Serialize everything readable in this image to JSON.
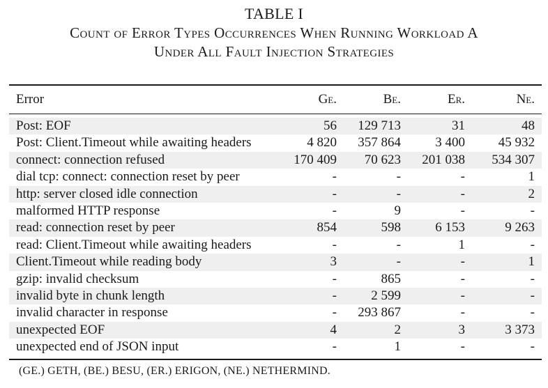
{
  "table_label": "TABLE I",
  "title_lines": [
    "Count of Error Types Occurrences When Running Workload A",
    "Under All Fault Injection Strategies"
  ],
  "headers": [
    "Error",
    "Ge.",
    "Be.",
    "Er.",
    "Ne."
  ],
  "rows": [
    {
      "error": "Post: EOF",
      "ge": "56",
      "be": "129 713",
      "er": "31",
      "ne": "48"
    },
    {
      "error": "Post: Client.Timeout while awaiting headers",
      "ge": "4 820",
      "be": "357 864",
      "er": "3 400",
      "ne": "45 932"
    },
    {
      "error": "connect: connection refused",
      "ge": "170 409",
      "be": "70 623",
      "er": "201 038",
      "ne": "534 307"
    },
    {
      "error": "dial tcp: connect: connection reset by peer",
      "ge": "-",
      "be": "-",
      "er": "-",
      "ne": "1"
    },
    {
      "error": "http: server closed idle connection",
      "ge": "-",
      "be": "-",
      "er": "-",
      "ne": "2"
    },
    {
      "error": "malformed HTTP response",
      "ge": "-",
      "be": "9",
      "er": "-",
      "ne": "-"
    },
    {
      "error": "read: connection reset by peer",
      "ge": "854",
      "be": "598",
      "er": "6 153",
      "ne": "9 263"
    },
    {
      "error": "read: Client.Timeout while awaiting headers",
      "ge": "-",
      "be": "-",
      "er": "1",
      "ne": "-"
    },
    {
      "error": "Client.Timeout while reading body",
      "ge": "3",
      "be": "-",
      "er": "-",
      "ne": "1"
    },
    {
      "error": "gzip: invalid checksum",
      "ge": "-",
      "be": "865",
      "er": "-",
      "ne": "-"
    },
    {
      "error": "invalid byte in chunk length",
      "ge": "-",
      "be": "2 599",
      "er": "-",
      "ne": "-"
    },
    {
      "error": "invalid character in response",
      "ge": "-",
      "be": "293 867",
      "er": "-",
      "ne": "-"
    },
    {
      "error": "unexpected EOF",
      "ge": "4",
      "be": "2",
      "er": "3",
      "ne": "3 373"
    },
    {
      "error": "unexpected end of JSON input",
      "ge": "-",
      "be": "1",
      "er": "-",
      "ne": "-"
    }
  ],
  "footnote": "(GE.) GETH, (BE.) BESU, (ER.) ERIGON, (NE.) NETHERMIND."
}
